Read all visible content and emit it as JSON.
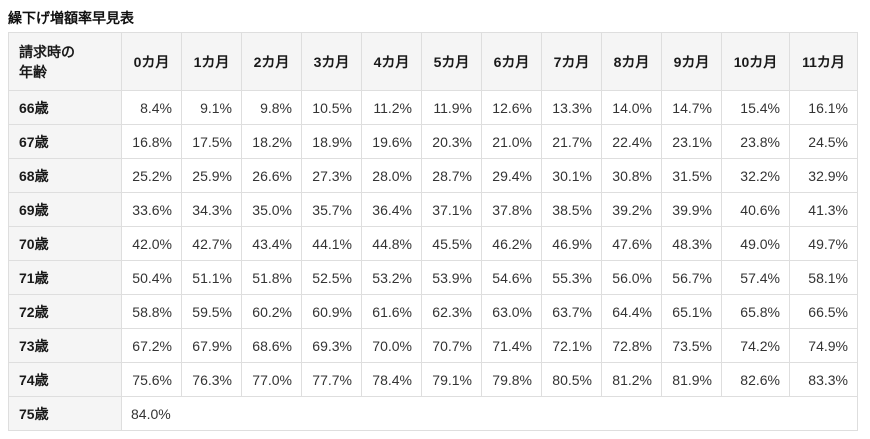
{
  "page": {
    "title": "繰下げ増額率早見表"
  },
  "colors": {
    "header_background": "#f5f5f5",
    "border": "#dedede",
    "header_text": "#1a1a1a",
    "cell_text": "#333333",
    "page_background": "#ffffff"
  },
  "chart_data": {
    "type": "table",
    "title": "繰下げ増額率早見表",
    "corner_header": "請求時の\n年齢",
    "columns": [
      "0カ月",
      "1カ月",
      "2カ月",
      "3カ月",
      "4カ月",
      "5カ月",
      "6カ月",
      "7カ月",
      "8カ月",
      "9カ月",
      "10カ月",
      "11カ月"
    ],
    "rows": [
      {
        "age": "66歳",
        "values": [
          "8.4%",
          "9.1%",
          "9.8%",
          "10.5%",
          "11.2%",
          "11.9%",
          "12.6%",
          "13.3%",
          "14.0%",
          "14.7%",
          "15.4%",
          "16.1%"
        ]
      },
      {
        "age": "67歳",
        "values": [
          "16.8%",
          "17.5%",
          "18.2%",
          "18.9%",
          "19.6%",
          "20.3%",
          "21.0%",
          "21.7%",
          "22.4%",
          "23.1%",
          "23.8%",
          "24.5%"
        ]
      },
      {
        "age": "68歳",
        "values": [
          "25.2%",
          "25.9%",
          "26.6%",
          "27.3%",
          "28.0%",
          "28.7%",
          "29.4%",
          "30.1%",
          "30.8%",
          "31.5%",
          "32.2%",
          "32.9%"
        ]
      },
      {
        "age": "69歳",
        "values": [
          "33.6%",
          "34.3%",
          "35.0%",
          "35.7%",
          "36.4%",
          "37.1%",
          "37.8%",
          "38.5%",
          "39.2%",
          "39.9%",
          "40.6%",
          "41.3%"
        ]
      },
      {
        "age": "70歳",
        "values": [
          "42.0%",
          "42.7%",
          "43.4%",
          "44.1%",
          "44.8%",
          "45.5%",
          "46.2%",
          "46.9%",
          "47.6%",
          "48.3%",
          "49.0%",
          "49.7%"
        ]
      },
      {
        "age": "71歳",
        "values": [
          "50.4%",
          "51.1%",
          "51.8%",
          "52.5%",
          "53.2%",
          "53.9%",
          "54.6%",
          "55.3%",
          "56.0%",
          "56.7%",
          "57.4%",
          "58.1%"
        ]
      },
      {
        "age": "72歳",
        "values": [
          "58.8%",
          "59.5%",
          "60.2%",
          "60.9%",
          "61.6%",
          "62.3%",
          "63.0%",
          "63.7%",
          "64.4%",
          "65.1%",
          "65.8%",
          "66.5%"
        ]
      },
      {
        "age": "73歳",
        "values": [
          "67.2%",
          "67.9%",
          "68.6%",
          "69.3%",
          "70.0%",
          "70.7%",
          "71.4%",
          "72.1%",
          "72.8%",
          "73.5%",
          "74.2%",
          "74.9%"
        ]
      },
      {
        "age": "74歳",
        "values": [
          "75.6%",
          "76.3%",
          "77.0%",
          "77.7%",
          "78.4%",
          "79.1%",
          "79.8%",
          "80.5%",
          "81.2%",
          "81.9%",
          "82.6%",
          "83.3%"
        ]
      },
      {
        "age": "75歳",
        "values": [
          "84.0%"
        ],
        "colspan": 12
      }
    ]
  }
}
